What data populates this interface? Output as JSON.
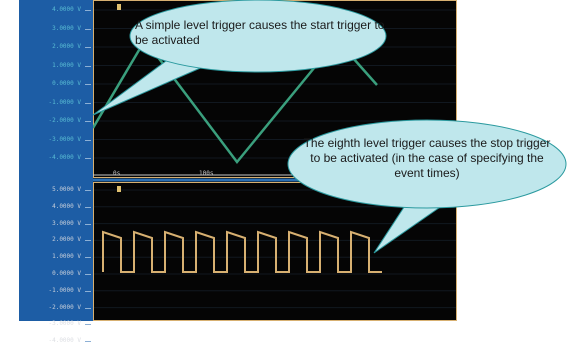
{
  "colors": {
    "frame": "#1d5da5",
    "screen": "#050505",
    "triangle_wave": "#3a9f7d",
    "square_wave": "#d7b071",
    "bubble_fill": "#bfe7ec",
    "bubble_stroke": "#2b9a9f"
  },
  "top_axis": [
    "4.0000 V",
    "3.0000 V",
    "2.0000 V",
    "1.0000 V",
    "0.0000 V",
    "-1.0000 V",
    "-2.0000 V",
    "-3.0000 V",
    "-4.0000 V"
  ],
  "bottom_axis": [
    "5.0000 V",
    "4.0000 V",
    "3.0000 V",
    "2.0000 V",
    "1.0000 V",
    "0.0000 V",
    "-1.0000 V",
    "-2.0000 V",
    "-3.0000 V",
    "-4.0000 V"
  ],
  "time_marks": [
    "0s",
    "100s"
  ],
  "callouts": {
    "start": "A simple level trigger causes the start trigger to be activated",
    "stop": "The eighth level trigger causes the stop trigger to be activated (in the case of specifying the event times)"
  }
}
